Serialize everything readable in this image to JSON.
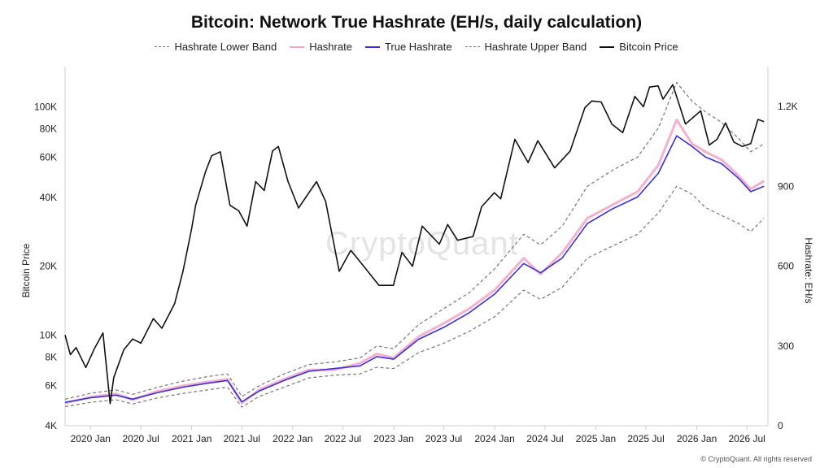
{
  "chart_data": {
    "type": "line",
    "title": "Bitcoin: Network True Hashrate (EH/s, daily calculation)",
    "left_axis": {
      "label": "Bitcoin Price",
      "scale": "log",
      "range": [
        4000,
        150000
      ],
      "ticks": [
        {
          "value": 4000,
          "label": "4K"
        },
        {
          "value": 6000,
          "label": "6K"
        },
        {
          "value": 8000,
          "label": "8K"
        },
        {
          "value": 10000,
          "label": "10K"
        },
        {
          "value": 20000,
          "label": "20K"
        },
        {
          "value": 40000,
          "label": "40K"
        },
        {
          "value": 60000,
          "label": "60K"
        },
        {
          "value": 80000,
          "label": "80K"
        },
        {
          "value": 100000,
          "label": "100K"
        }
      ]
    },
    "right_axis": {
      "label": "Hashrate: EH/s",
      "scale": "linear",
      "range": [
        0,
        1350
      ],
      "ticks": [
        {
          "value": 0,
          "label": "0"
        },
        {
          "value": 300,
          "label": "300"
        },
        {
          "value": 600,
          "label": "600"
        },
        {
          "value": 900,
          "label": "900"
        },
        {
          "value": 1200,
          "label": "1.2K"
        }
      ]
    },
    "x_axis": {
      "range": [
        "2019-10-01",
        "2026-09-15"
      ],
      "ticks": [
        {
          "value": "2020-01-01",
          "label": "2020 Jan"
        },
        {
          "value": "2020-07-01",
          "label": "2020 Jul"
        },
        {
          "value": "2021-01-01",
          "label": "2021 Jan"
        },
        {
          "value": "2021-07-01",
          "label": "2021 Jul"
        },
        {
          "value": "2022-01-01",
          "label": "2022 Jan"
        },
        {
          "value": "2022-07-01",
          "label": "2022 Jul"
        },
        {
          "value": "2023-01-01",
          "label": "2023 Jan"
        },
        {
          "value": "2023-07-01",
          "label": "2023 Jul"
        },
        {
          "value": "2024-01-01",
          "label": "2024 Jan"
        },
        {
          "value": "2024-07-01",
          "label": "2024 Jul"
        },
        {
          "value": "2025-01-01",
          "label": "2025 Jan"
        },
        {
          "value": "2025-07-01",
          "label": "2025 Jul"
        },
        {
          "value": "2026-01-01",
          "label": "2026 Jan"
        },
        {
          "value": "2026-07-01",
          "label": "2026 Jul"
        }
      ]
    },
    "legend": [
      {
        "name": "Hashrate Lower Band",
        "style": "dashed",
        "color": "#777777"
      },
      {
        "name": "Hashrate",
        "style": "solid",
        "color": "#f1a3c8"
      },
      {
        "name": "True Hashrate",
        "style": "solid",
        "color": "#3b2fd6"
      },
      {
        "name": "Hashrate Upper Band",
        "style": "dashed",
        "color": "#777777"
      },
      {
        "name": "Bitcoin Price",
        "style": "solid",
        "color": "#111111"
      }
    ],
    "series": [
      {
        "name": "Bitcoin Price",
        "axis": "left",
        "color": "#111111",
        "points": [
          [
            "2019-10-01",
            10000
          ],
          [
            "2019-10-20",
            8200
          ],
          [
            "2019-11-10",
            8800
          ],
          [
            "2019-12-15",
            7200
          ],
          [
            "2020-01-15",
            8700
          ],
          [
            "2020-02-15",
            10200
          ],
          [
            "2020-03-12",
            5000
          ],
          [
            "2020-03-25",
            6500
          ],
          [
            "2020-04-30",
            8600
          ],
          [
            "2020-06-01",
            9600
          ],
          [
            "2020-07-01",
            9200
          ],
          [
            "2020-08-15",
            11800
          ],
          [
            "2020-09-15",
            10700
          ],
          [
            "2020-10-31",
            13700
          ],
          [
            "2020-11-30",
            19000
          ],
          [
            "2020-12-31",
            29000
          ],
          [
            "2021-01-15",
            37000
          ],
          [
            "2021-02-20",
            52000
          ],
          [
            "2021-03-14",
            61000
          ],
          [
            "2021-04-14",
            63500
          ],
          [
            "2021-05-19",
            37000
          ],
          [
            "2021-06-20",
            35000
          ],
          [
            "2021-07-20",
            30000
          ],
          [
            "2021-08-20",
            47000
          ],
          [
            "2021-09-20",
            43000
          ],
          [
            "2021-10-20",
            64000
          ],
          [
            "2021-11-10",
            67000
          ],
          [
            "2021-12-15",
            47000
          ],
          [
            "2022-01-22",
            36000
          ],
          [
            "2022-03-28",
            47000
          ],
          [
            "2022-04-30",
            38500
          ],
          [
            "2022-06-18",
            19000
          ],
          [
            "2022-07-30",
            23500
          ],
          [
            "2022-09-15",
            20000
          ],
          [
            "2022-11-09",
            16500
          ],
          [
            "2022-12-31",
            16500
          ],
          [
            "2023-01-31",
            23000
          ],
          [
            "2023-03-10",
            20000
          ],
          [
            "2023-04-14",
            30000
          ],
          [
            "2023-06-15",
            25000
          ],
          [
            "2023-07-15",
            30500
          ],
          [
            "2023-08-20",
            26000
          ],
          [
            "2023-10-15",
            27000
          ],
          [
            "2023-11-15",
            36500
          ],
          [
            "2023-12-31",
            42000
          ],
          [
            "2024-01-23",
            39500
          ],
          [
            "2024-03-14",
            72000
          ],
          [
            "2024-05-01",
            57000
          ],
          [
            "2024-06-05",
            71000
          ],
          [
            "2024-08-05",
            54000
          ],
          [
            "2024-09-30",
            64000
          ],
          [
            "2024-11-22",
            99000
          ],
          [
            "2024-12-17",
            106000
          ],
          [
            "2025-01-20",
            105000
          ],
          [
            "2025-02-28",
            84000
          ],
          [
            "2025-04-08",
            77000
          ],
          [
            "2025-05-22",
            111000
          ],
          [
            "2025-06-22",
            100000
          ],
          [
            "2025-07-14",
            122000
          ],
          [
            "2025-08-14",
            123500
          ],
          [
            "2025-09-01",
            108000
          ],
          [
            "2025-10-06",
            125000
          ],
          [
            "2025-11-21",
            84000
          ],
          [
            "2026-01-15",
            96000
          ],
          [
            "2026-02-15",
            68000
          ],
          [
            "2026-03-15",
            72000
          ],
          [
            "2026-04-15",
            85000
          ],
          [
            "2026-05-15",
            70000
          ],
          [
            "2026-06-15",
            67000
          ],
          [
            "2026-07-15",
            69000
          ],
          [
            "2026-08-10",
            88000
          ],
          [
            "2026-09-01",
            86000
          ]
        ]
      },
      {
        "name": "True Hashrate",
        "axis": "right",
        "color": "#3b2fd6",
        "points": [
          [
            "2019-10-01",
            88
          ],
          [
            "2020-01-01",
            105
          ],
          [
            "2020-04-01",
            115
          ],
          [
            "2020-06-01",
            100
          ],
          [
            "2020-09-01",
            125
          ],
          [
            "2020-12-01",
            145
          ],
          [
            "2021-03-01",
            160
          ],
          [
            "2021-05-10",
            170
          ],
          [
            "2021-07-01",
            90
          ],
          [
            "2021-09-01",
            130
          ],
          [
            "2021-12-01",
            170
          ],
          [
            "2022-03-01",
            205
          ],
          [
            "2022-06-01",
            215
          ],
          [
            "2022-09-01",
            225
          ],
          [
            "2022-11-01",
            260
          ],
          [
            "2023-01-01",
            250
          ],
          [
            "2023-04-01",
            325
          ],
          [
            "2023-07-01",
            370
          ],
          [
            "2023-10-01",
            425
          ],
          [
            "2024-01-01",
            495
          ],
          [
            "2024-04-15",
            610
          ],
          [
            "2024-06-15",
            575
          ],
          [
            "2024-09-01",
            630
          ],
          [
            "2024-12-01",
            760
          ],
          [
            "2025-03-01",
            815
          ],
          [
            "2025-06-01",
            860
          ],
          [
            "2025-08-15",
            950
          ],
          [
            "2025-10-20",
            1090
          ],
          [
            "2025-12-15",
            1050
          ],
          [
            "2026-02-01",
            1010
          ],
          [
            "2026-04-01",
            985
          ],
          [
            "2026-06-01",
            930
          ],
          [
            "2026-07-15",
            880
          ],
          [
            "2026-09-01",
            900
          ]
        ]
      },
      {
        "name": "Hashrate",
        "axis": "right",
        "color": "#f1a3c8",
        "points": [
          [
            "2019-10-01",
            85
          ],
          [
            "2020-01-01",
            108
          ],
          [
            "2020-04-01",
            120
          ],
          [
            "2020-06-01",
            98
          ],
          [
            "2020-09-01",
            130
          ],
          [
            "2020-12-01",
            150
          ],
          [
            "2021-03-01",
            165
          ],
          [
            "2021-05-10",
            175
          ],
          [
            "2021-07-01",
            85
          ],
          [
            "2021-09-01",
            135
          ],
          [
            "2021-12-01",
            175
          ],
          [
            "2022-03-01",
            210
          ],
          [
            "2022-06-01",
            210
          ],
          [
            "2022-09-01",
            235
          ],
          [
            "2022-11-01",
            270
          ],
          [
            "2023-01-01",
            255
          ],
          [
            "2023-04-01",
            335
          ],
          [
            "2023-07-01",
            385
          ],
          [
            "2023-10-01",
            440
          ],
          [
            "2024-01-01",
            510
          ],
          [
            "2024-04-15",
            630
          ],
          [
            "2024-06-15",
            570
          ],
          [
            "2024-09-01",
            650
          ],
          [
            "2024-12-01",
            780
          ],
          [
            "2025-03-01",
            830
          ],
          [
            "2025-06-01",
            880
          ],
          [
            "2025-08-15",
            980
          ],
          [
            "2025-10-20",
            1150
          ],
          [
            "2025-12-15",
            1060
          ],
          [
            "2026-02-01",
            1030
          ],
          [
            "2026-04-01",
            1000
          ],
          [
            "2026-06-01",
            940
          ],
          [
            "2026-07-15",
            890
          ],
          [
            "2026-09-01",
            920
          ]
        ]
      },
      {
        "name": "Hashrate Upper Band",
        "axis": "right",
        "color": "#777777",
        "dashed": true,
        "points": [
          [
            "2019-10-01",
            100
          ],
          [
            "2020-01-01",
            122
          ],
          [
            "2020-04-01",
            135
          ],
          [
            "2020-06-01",
            118
          ],
          [
            "2020-09-01",
            145
          ],
          [
            "2020-12-01",
            168
          ],
          [
            "2021-03-01",
            185
          ],
          [
            "2021-05-10",
            195
          ],
          [
            "2021-07-01",
            110
          ],
          [
            "2021-09-01",
            150
          ],
          [
            "2021-12-01",
            195
          ],
          [
            "2022-03-01",
            230
          ],
          [
            "2022-06-01",
            240
          ],
          [
            "2022-09-01",
            255
          ],
          [
            "2022-11-01",
            300
          ],
          [
            "2023-01-01",
            290
          ],
          [
            "2023-04-01",
            380
          ],
          [
            "2023-07-01",
            440
          ],
          [
            "2023-10-01",
            500
          ],
          [
            "2024-01-01",
            590
          ],
          [
            "2024-04-15",
            720
          ],
          [
            "2024-06-15",
            680
          ],
          [
            "2024-09-01",
            750
          ],
          [
            "2024-12-01",
            900
          ],
          [
            "2025-03-01",
            960
          ],
          [
            "2025-06-01",
            1010
          ],
          [
            "2025-08-15",
            1120
          ],
          [
            "2025-10-20",
            1290
          ],
          [
            "2025-12-15",
            1220
          ],
          [
            "2026-02-01",
            1180
          ],
          [
            "2026-04-01",
            1140
          ],
          [
            "2026-06-01",
            1080
          ],
          [
            "2026-07-15",
            1030
          ],
          [
            "2026-09-01",
            1060
          ]
        ]
      },
      {
        "name": "Hashrate Lower Band",
        "axis": "right",
        "color": "#777777",
        "dashed": true,
        "points": [
          [
            "2019-10-01",
            72
          ],
          [
            "2020-01-01",
            88
          ],
          [
            "2020-04-01",
            98
          ],
          [
            "2020-06-01",
            82
          ],
          [
            "2020-09-01",
            105
          ],
          [
            "2020-12-01",
            122
          ],
          [
            "2021-03-01",
            135
          ],
          [
            "2021-05-10",
            145
          ],
          [
            "2021-07-01",
            70
          ],
          [
            "2021-09-01",
            110
          ],
          [
            "2021-12-01",
            145
          ],
          [
            "2022-03-01",
            180
          ],
          [
            "2022-06-01",
            190
          ],
          [
            "2022-09-01",
            195
          ],
          [
            "2022-11-01",
            220
          ],
          [
            "2023-01-01",
            215
          ],
          [
            "2023-04-01",
            275
          ],
          [
            "2023-07-01",
            310
          ],
          [
            "2023-10-01",
            355
          ],
          [
            "2024-01-01",
            410
          ],
          [
            "2024-04-15",
            510
          ],
          [
            "2024-06-15",
            475
          ],
          [
            "2024-09-01",
            520
          ],
          [
            "2024-12-01",
            630
          ],
          [
            "2025-03-01",
            675
          ],
          [
            "2025-06-01",
            720
          ],
          [
            "2025-08-15",
            800
          ],
          [
            "2025-10-20",
            900
          ],
          [
            "2025-12-15",
            870
          ],
          [
            "2026-02-01",
            820
          ],
          [
            "2026-04-01",
            790
          ],
          [
            "2026-06-01",
            760
          ],
          [
            "2026-07-15",
            730
          ],
          [
            "2026-09-01",
            780
          ]
        ]
      }
    ]
  },
  "watermark": "CryptoQuant",
  "copyright": "© CryptoQuant. All rights reserved"
}
